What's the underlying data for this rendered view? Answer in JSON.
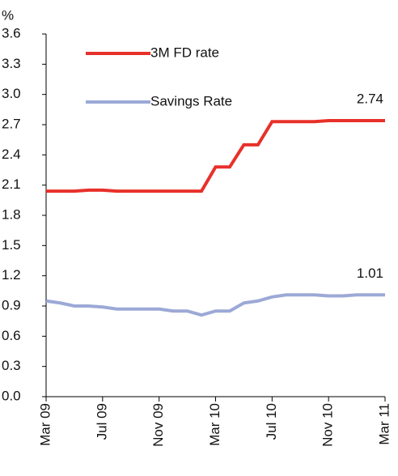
{
  "chart_data": {
    "type": "line",
    "y_label": "%",
    "categories": [
      "Mar 09",
      null,
      null,
      null,
      "Jul 09",
      null,
      null,
      null,
      "Nov 09",
      null,
      null,
      null,
      "Mar 10",
      null,
      null,
      null,
      "Jul 10",
      null,
      null,
      null,
      "Nov 10",
      null,
      null,
      null,
      "Mar 11"
    ],
    "series": [
      {
        "name": "3M FD rate",
        "color": "#e8302a",
        "values": [
          2.04,
          2.04,
          2.04,
          2.05,
          2.05,
          2.04,
          2.04,
          2.04,
          2.04,
          2.04,
          2.04,
          2.04,
          2.28,
          2.28,
          2.5,
          2.5,
          2.73,
          2.73,
          2.73,
          2.73,
          2.74,
          2.74,
          2.74,
          2.74,
          2.74
        ]
      },
      {
        "name": "Savings Rate",
        "color": "#9ca9d6",
        "values": [
          0.95,
          0.93,
          0.9,
          0.9,
          0.89,
          0.87,
          0.87,
          0.87,
          0.87,
          0.85,
          0.85,
          0.81,
          0.85,
          0.85,
          0.93,
          0.95,
          0.99,
          1.01,
          1.01,
          1.01,
          1.0,
          1.0,
          1.01,
          1.01,
          1.01
        ]
      }
    ],
    "end_label_colors": [
      "#e8302a",
      "#3a4aa8"
    ],
    "ylim": [
      0,
      3.6
    ],
    "yticks": [
      {
        "value": 0,
        "label": "0.0"
      },
      0.3,
      0.6,
      0.9,
      1.2,
      1.5,
      1.8,
      2.1,
      2.4,
      2.7,
      {
        "value": 3,
        "label": "3.0"
      },
      3.3,
      3.6
    ],
    "legend": "upper left"
  }
}
